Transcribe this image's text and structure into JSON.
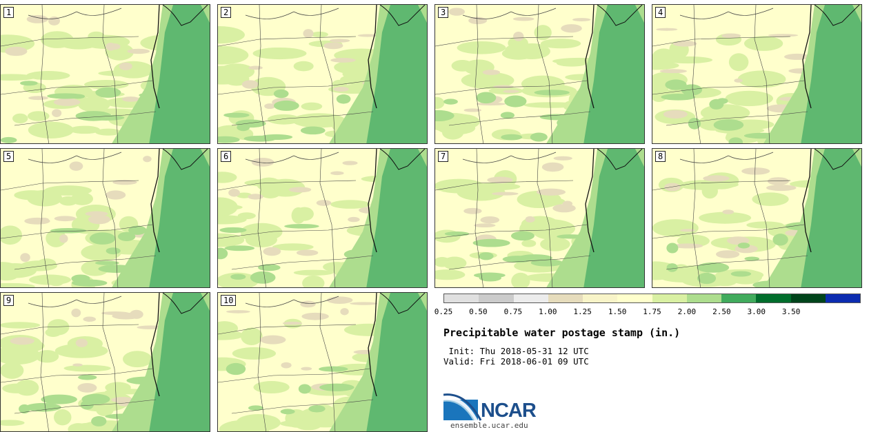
{
  "panels": [
    {
      "label": "1"
    },
    {
      "label": "2"
    },
    {
      "label": "3"
    },
    {
      "label": "4"
    },
    {
      "label": "5"
    },
    {
      "label": "6"
    },
    {
      "label": "7"
    },
    {
      "label": "8"
    },
    {
      "label": "9"
    },
    {
      "label": "10"
    }
  ],
  "legend": {
    "colors": [
      "#e0e0e0",
      "#cbcbcb",
      "#ececec",
      "#e6dcbc",
      "#f8f4c8",
      "#ffffcc",
      "#d9f0a3",
      "#addd8e",
      "#41ab5d",
      "#006d2c",
      "#00441b",
      "#0c2cb0"
    ],
    "ticks": [
      "0.25",
      "0.50",
      "0.75",
      "1.00",
      "1.25",
      "1.50",
      "1.75",
      "2.00",
      "2.50",
      "3.00",
      "3.50"
    ]
  },
  "title": "Precipitable water postage stamp (in.)",
  "init": " Init: Thu 2018-05-31 12 UTC",
  "valid": "Valid: Fri 2018-06-01 09 UTC",
  "logo": {
    "text": "NCAR",
    "site": "ensemble.ucar.edu"
  },
  "colors": {
    "low": "#ffffcc",
    "light": "#d9f0a3",
    "mid": "#addd8e",
    "high": "#5fb870",
    "dry": "#e6dcbc"
  }
}
